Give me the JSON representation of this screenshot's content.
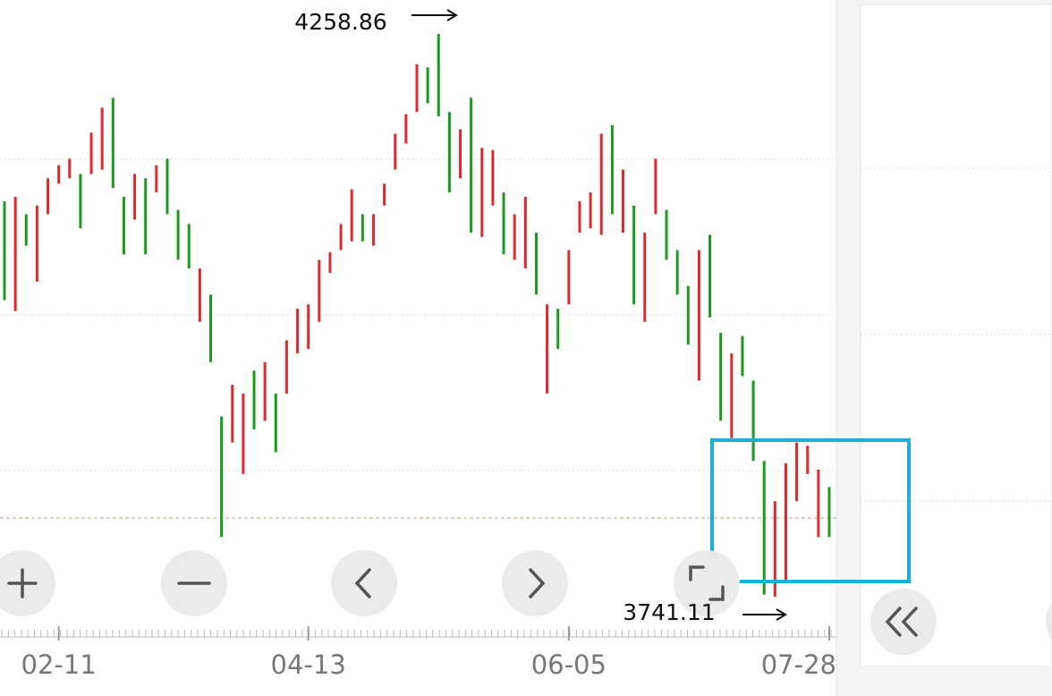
{
  "chart_data": {
    "type": "candlestick",
    "categories": [
      null,
      null,
      null,
      null,
      null,
      "02-11",
      null,
      null,
      null,
      null,
      null,
      null,
      null,
      null,
      null,
      null,
      null,
      null,
      null,
      null,
      null,
      null,
      null,
      null,
      null,
      null,
      null,
      null,
      "04-13",
      null,
      null,
      null,
      null,
      null,
      null,
      null,
      null,
      null,
      null,
      null,
      null,
      null,
      null,
      null,
      null,
      null,
      null,
      null,
      null,
      null,
      null,
      null,
      "06-05",
      null,
      null,
      null,
      null,
      null,
      null,
      null,
      null,
      null,
      null,
      null,
      null,
      null,
      null,
      null,
      null,
      null,
      null,
      null,
      null,
      null,
      null,
      null,
      "07-28"
    ],
    "open": [
      4105,
      4004,
      4093,
      4031,
      4093,
      4121,
      4126,
      4130,
      4130,
      4134,
      4200,
      4109,
      4088,
      4126,
      4113,
      4144,
      4097,
      4084,
      3994,
      4019,
      3907,
      3883,
      3854,
      3949,
      3903,
      3928,
      3928,
      3965,
      3969,
      3994,
      4039,
      4060,
      4068,
      4093,
      4064,
      4101,
      4134,
      4158,
      4187,
      4228,
      4258.86,
      4187,
      4126,
      4200,
      4072,
      4101,
      4113,
      4051,
      4043,
      4076,
      3928,
      4006,
      4010,
      4076,
      4080,
      4074,
      4175,
      4076,
      4101,
      3994,
      4093,
      4097,
      4060,
      4027,
      3940,
      4074,
      3984,
      3887,
      3981,
      3940,
      3866,
      3741.11,
      3755,
      3829,
      3854,
      3796,
      3842
    ],
    "close": [
      4014,
      4109,
      4064,
      4101,
      4126,
      4138,
      4144,
      4080,
      4168,
      4191,
      4117,
      4056,
      4130,
      4056,
      4138,
      4093,
      4051,
      4043,
      4043,
      3957,
      3796,
      3936,
      3928,
      3895,
      3957,
      3874,
      3977,
      4006,
      4010,
      4051,
      4058,
      4084,
      4116,
      4068,
      4093,
      4121,
      4167,
      4185,
      4231,
      4195,
      4183,
      4113,
      4171,
      4076,
      4154,
      4152,
      4056,
      4093,
      4109,
      4019,
      4010,
      3969,
      4060,
      4105,
      4113,
      4167,
      4093,
      4134,
      4010,
      4076,
      4144,
      4051,
      4019,
      3973,
      4060,
      3998,
      3903,
      3965,
      3944,
      3866,
      3743,
      3829,
      3864,
      3883,
      3880,
      3858,
      3796
    ],
    "up_color": "#e0282e",
    "down_color": "#1b9a1b",
    "ylim": [
      3714,
      4290
    ],
    "annotations": [
      "4258.86",
      "3741.11"
    ]
  }
}
